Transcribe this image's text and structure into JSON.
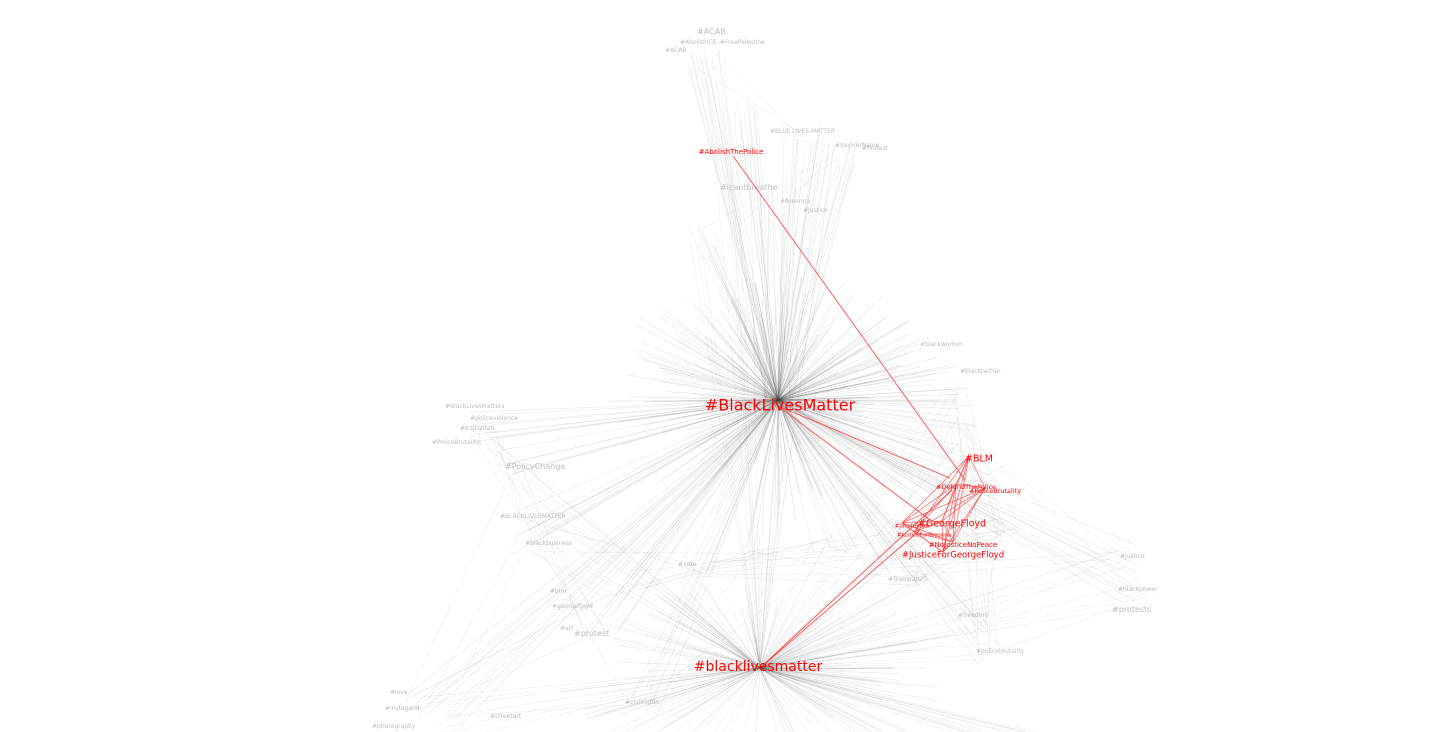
{
  "graph": {
    "colors": {
      "highlight": "#ff0000",
      "highlight_edge": "#ff3b3b",
      "faint_edge": "#9a9a9a",
      "faint_label": "#bdbdbd",
      "hub_edge": "#444444"
    },
    "highlighted_nodes": [
      {
        "id": "blm_title",
        "label": "#BlackLivesMatter",
        "role": "hub"
      },
      {
        "id": "blm_lower",
        "label": "#blacklivesmatter",
        "role": "hub"
      },
      {
        "id": "abolish",
        "label": "#AbolishThePolice",
        "role": "leaf"
      },
      {
        "id": "blm_short",
        "label": "#BLM",
        "role": "cluster"
      },
      {
        "id": "defund",
        "label": "#DefundThePolice",
        "role": "cluster"
      },
      {
        "id": "brutality",
        "label": "#PoliceBrutality",
        "role": "cluster"
      },
      {
        "id": "gfloyd",
        "label": "#GeorgeFloyd",
        "role": "cluster"
      },
      {
        "id": "jacob",
        "label": "#JacobBlake",
        "role": "cluster"
      },
      {
        "id": "jbreonna",
        "label": "#JusticeForBreonna",
        "role": "cluster"
      },
      {
        "id": "njnp",
        "label": "#NoJusticeNoPeace",
        "role": "cluster"
      },
      {
        "id": "jgfloyd",
        "label": "#JusticeForGeorgeFloyd",
        "role": "cluster"
      }
    ],
    "faint_labels": [
      "#ACAB",
      "#AbolishICE",
      "#FreePalestine",
      "#ACAB",
      "#BLUE LIVES MATTER",
      "#SayHerName",
      "#Protest",
      "#icantbreathe",
      "#Breonna",
      "#Justice",
      "#BlackLivesMatters",
      "#policeviolence",
      "#KSJD2020",
      "#PoliceBrutality",
      "#PolicyChange",
      "#BLACKLIVESMATTER",
      "#blackbusiness",
      "#blackwomen",
      "#blacktwitter",
      "#justice",
      "#blackpower",
      "#protests",
      "#freedom",
      "#policebrutality",
      "#Trump2020",
      "#vote",
      "#blm",
      "#georgefloyd",
      "#protest",
      "#art",
      "#love",
      "#instagood",
      "#photography",
      "#streetart",
      "#civilrights"
    ]
  }
}
